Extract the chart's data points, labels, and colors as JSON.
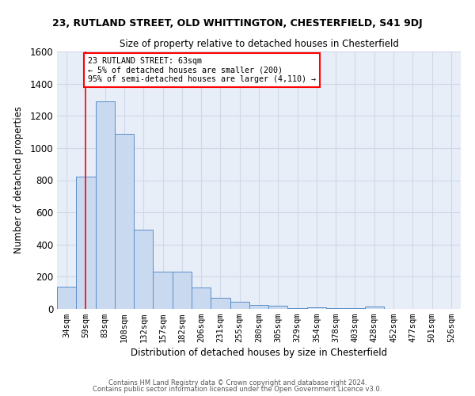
{
  "title_line1": "23, RUTLAND STREET, OLD WHITTINGTON, CHESTERFIELD, S41 9DJ",
  "title_line2": "Size of property relative to detached houses in Chesterfield",
  "xlabel": "Distribution of detached houses by size in Chesterfield",
  "ylabel": "Number of detached properties",
  "footer_line1": "Contains HM Land Registry data © Crown copyright and database right 2024.",
  "footer_line2": "Contains public sector information licensed under the Open Government Licence v3.0.",
  "categories": [
    "34sqm",
    "59sqm",
    "83sqm",
    "108sqm",
    "132sqm",
    "157sqm",
    "182sqm",
    "206sqm",
    "231sqm",
    "255sqm",
    "280sqm",
    "305sqm",
    "329sqm",
    "354sqm",
    "378sqm",
    "403sqm",
    "428sqm",
    "452sqm",
    "477sqm",
    "501sqm",
    "526sqm"
  ],
  "values": [
    140,
    820,
    1290,
    1090,
    490,
    230,
    230,
    135,
    70,
    45,
    25,
    20,
    5,
    12,
    5,
    5,
    13,
    0,
    0,
    0,
    0
  ],
  "bar_color": "#c9d9f0",
  "bar_edge_color": "#5b8fc9",
  "red_line_x": 1.0,
  "annotation_text": "23 RUTLAND STREET: 63sqm\n← 5% of detached houses are smaller (200)\n95% of semi-detached houses are larger (4,110) →",
  "annotation_box_color": "white",
  "annotation_box_edge_color": "red",
  "ylim": [
    0,
    1600
  ],
  "yticks": [
    0,
    200,
    400,
    600,
    800,
    1000,
    1200,
    1400,
    1600
  ],
  "grid_color": "#d0d8e8",
  "plot_bg_color": "#e8eef8",
  "fig_bg_color": "#ffffff"
}
